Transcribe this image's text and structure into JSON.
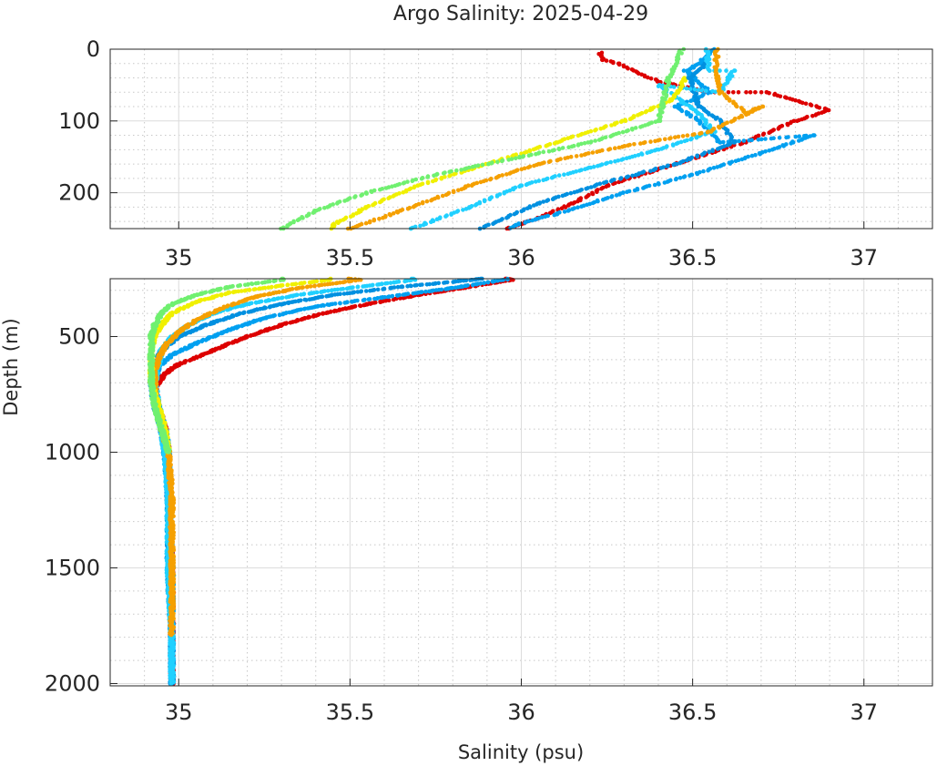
{
  "chart_data": {
    "type": "scatter",
    "title": "Argo Salinity: 2025-04-29",
    "xlabel": "Salinity (psu)",
    "ylabel": "Depth (m)",
    "xlim": [
      34.8,
      37.2
    ],
    "x_ticks": [
      "35",
      "35.5",
      "36",
      "36.5",
      "37"
    ],
    "y_reversed": true,
    "grid": true,
    "minor_grid": true,
    "panels": [
      {
        "name": "upper",
        "ylim": [
          0,
          250
        ],
        "y_ticks": [
          "0",
          "100",
          "200"
        ]
      },
      {
        "name": "lower",
        "ylim": [
          250,
          2010
        ],
        "y_ticks": [
          "500",
          "1000",
          "1500",
          "2000"
        ]
      }
    ],
    "series": [
      {
        "color": "#dd0000",
        "profile": [
          [
            36.23,
            5
          ],
          [
            36.24,
            15
          ],
          [
            36.28,
            20
          ],
          [
            36.4,
            45
          ],
          [
            36.55,
            60
          ],
          [
            36.72,
            60
          ],
          [
            36.9,
            85
          ],
          [
            36.8,
            100
          ],
          [
            36.65,
            130
          ],
          [
            36.45,
            160
          ],
          [
            36.25,
            190
          ],
          [
            36.15,
            215
          ],
          [
            36.05,
            235
          ],
          [
            35.96,
            250
          ],
          [
            35.97,
            255
          ],
          [
            35.85,
            285
          ],
          [
            35.7,
            320
          ],
          [
            35.55,
            360
          ],
          [
            35.42,
            400
          ],
          [
            35.3,
            450
          ],
          [
            35.2,
            500
          ],
          [
            35.1,
            560
          ],
          [
            35.0,
            620
          ],
          [
            34.96,
            660
          ],
          [
            34.93,
            720
          ],
          [
            34.94,
            800
          ],
          [
            34.96,
            900
          ],
          [
            34.97,
            1000
          ],
          [
            34.97,
            1200
          ],
          [
            34.98,
            1500
          ],
          [
            34.98,
            1800
          ],
          [
            34.98,
            2000
          ]
        ]
      },
      {
        "color": "#00a0f0",
        "profile": [
          [
            36.56,
            0
          ],
          [
            36.52,
            20
          ],
          [
            36.48,
            30
          ],
          [
            36.55,
            60
          ],
          [
            36.45,
            80
          ],
          [
            36.52,
            100
          ],
          [
            36.58,
            130
          ],
          [
            36.85,
            120
          ],
          [
            36.7,
            145
          ],
          [
            36.5,
            175
          ],
          [
            36.3,
            200
          ],
          [
            36.1,
            230
          ],
          [
            35.98,
            245
          ],
          [
            35.95,
            255
          ],
          [
            35.8,
            290
          ],
          [
            35.6,
            330
          ],
          [
            35.4,
            370
          ],
          [
            35.25,
            420
          ],
          [
            35.15,
            470
          ],
          [
            35.05,
            530
          ],
          [
            34.98,
            580
          ],
          [
            34.94,
            630
          ],
          [
            34.93,
            700
          ],
          [
            34.93,
            750
          ],
          [
            34.94,
            800
          ],
          [
            34.96,
            900
          ],
          [
            34.97,
            1000
          ],
          [
            34.97,
            1200
          ],
          [
            34.98,
            1500
          ],
          [
            34.98,
            1800
          ],
          [
            34.98,
            2000
          ]
        ]
      },
      {
        "color": "#0090e0",
        "profile": [
          [
            36.54,
            20
          ],
          [
            36.49,
            40
          ],
          [
            36.52,
            80
          ],
          [
            36.58,
            100
          ],
          [
            36.62,
            130
          ],
          [
            36.45,
            160
          ],
          [
            36.25,
            185
          ],
          [
            36.05,
            215
          ],
          [
            35.88,
            250
          ],
          [
            35.86,
            255
          ],
          [
            35.65,
            285
          ],
          [
            35.45,
            320
          ],
          [
            35.3,
            360
          ],
          [
            35.18,
            400
          ],
          [
            35.08,
            450
          ],
          [
            35.0,
            500
          ],
          [
            34.95,
            560
          ],
          [
            34.93,
            620
          ],
          [
            34.92,
            700
          ],
          [
            34.93,
            800
          ],
          [
            34.95,
            900
          ],
          [
            34.96,
            1000
          ],
          [
            34.97,
            1200
          ],
          [
            34.97,
            1500
          ],
          [
            34.98,
            1800
          ],
          [
            34.98,
            2000
          ]
        ]
      },
      {
        "color": "#20d0ff",
        "profile": [
          [
            36.54,
            0
          ],
          [
            36.55,
            30
          ],
          [
            36.62,
            30
          ],
          [
            36.58,
            60
          ],
          [
            36.4,
            50
          ],
          [
            36.52,
            90
          ],
          [
            36.56,
            115
          ],
          [
            36.4,
            140
          ],
          [
            36.2,
            165
          ],
          [
            36.0,
            190
          ],
          [
            35.85,
            220
          ],
          [
            35.68,
            250
          ],
          [
            35.69,
            255
          ],
          [
            35.5,
            290
          ],
          [
            35.35,
            320
          ],
          [
            35.2,
            360
          ],
          [
            35.1,
            400
          ],
          [
            35.03,
            450
          ],
          [
            34.98,
            500
          ],
          [
            34.95,
            560
          ],
          [
            34.94,
            620
          ],
          [
            34.93,
            700
          ],
          [
            34.94,
            800
          ],
          [
            34.95,
            900
          ],
          [
            34.96,
            1000
          ],
          [
            34.97,
            1200
          ],
          [
            34.97,
            1500
          ],
          [
            34.98,
            1800
          ],
          [
            34.98,
            2000
          ]
        ]
      },
      {
        "color": "#f5a000",
        "profile": [
          [
            36.57,
            0
          ],
          [
            36.57,
            40
          ],
          [
            36.58,
            60
          ],
          [
            36.66,
            90
          ],
          [
            36.7,
            80
          ],
          [
            36.55,
            115
          ],
          [
            36.3,
            135
          ],
          [
            36.05,
            160
          ],
          [
            35.85,
            190
          ],
          [
            35.65,
            225
          ],
          [
            35.5,
            250
          ],
          [
            35.53,
            255
          ],
          [
            35.35,
            290
          ],
          [
            35.22,
            330
          ],
          [
            35.12,
            380
          ],
          [
            35.05,
            430
          ],
          [
            35.0,
            480
          ],
          [
            34.96,
            540
          ],
          [
            34.94,
            600
          ],
          [
            34.93,
            660
          ],
          [
            34.93,
            750
          ],
          [
            34.95,
            900
          ],
          [
            34.97,
            1000
          ],
          [
            34.98,
            1200
          ],
          [
            34.98,
            1500
          ],
          [
            34.98,
            1750
          ],
          [
            34.98,
            1790
          ]
        ]
      },
      {
        "color": "#f0f000",
        "profile": [
          [
            36.48,
            40
          ],
          [
            36.44,
            70
          ],
          [
            36.3,
            100
          ],
          [
            36.1,
            130
          ],
          [
            35.9,
            160
          ],
          [
            35.7,
            190
          ],
          [
            35.55,
            220
          ],
          [
            35.45,
            245
          ],
          [
            35.44,
            255
          ],
          [
            35.3,
            280
          ],
          [
            35.15,
            310
          ],
          [
            35.05,
            350
          ],
          [
            34.98,
            400
          ],
          [
            34.95,
            450
          ],
          [
            34.93,
            500
          ],
          [
            34.92,
            560
          ],
          [
            34.92,
            620
          ],
          [
            34.92,
            700
          ],
          [
            34.94,
            800
          ],
          [
            34.96,
            900
          ],
          [
            34.97,
            1000
          ]
        ]
      },
      {
        "color": "#70f070",
        "profile": [
          [
            36.47,
            0
          ],
          [
            36.43,
            40
          ],
          [
            36.42,
            60
          ],
          [
            36.4,
            100
          ],
          [
            36.2,
            130
          ],
          [
            36.0,
            150
          ],
          [
            35.75,
            175
          ],
          [
            35.55,
            200
          ],
          [
            35.4,
            225
          ],
          [
            35.3,
            250
          ],
          [
            35.3,
            255
          ],
          [
            35.15,
            285
          ],
          [
            35.05,
            320
          ],
          [
            34.98,
            360
          ],
          [
            34.95,
            400
          ],
          [
            34.93,
            450
          ],
          [
            34.92,
            500
          ],
          [
            34.92,
            560
          ],
          [
            34.92,
            620
          ],
          [
            34.92,
            700
          ],
          [
            34.93,
            800
          ],
          [
            34.95,
            900
          ],
          [
            34.97,
            1000
          ]
        ]
      }
    ]
  }
}
